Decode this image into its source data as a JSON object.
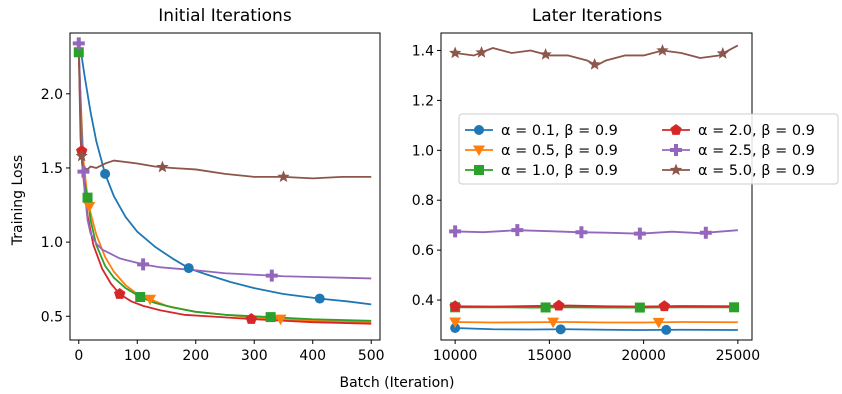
{
  "figure": {
    "xlabel": "Batch (Iteration)",
    "ylabel": "Training Loss"
  },
  "chart_data": [
    {
      "type": "line",
      "title": "Initial Iterations",
      "xlim": [
        -15,
        515
      ],
      "ylim": [
        0.34,
        2.41
      ],
      "xticks": [
        0,
        100,
        200,
        300,
        400,
        500
      ],
      "yticks": [
        0.5,
        1.0,
        1.5,
        2.0
      ],
      "xtick_labels": [
        "0",
        "100",
        "200",
        "300",
        "400",
        "500"
      ],
      "ytick_labels": [
        "0.5",
        "1.0",
        "1.5",
        "2.0"
      ],
      "series": [
        {
          "name": "α = 0.1, β = 0.9",
          "color": "#1f77b4",
          "marker": "circle",
          "x": [
            0,
            5,
            10,
            20,
            30,
            45,
            60,
            80,
            100,
            130,
            160,
            190,
            220,
            260,
            300,
            350,
            410,
            460,
            500
          ],
          "y": [
            2.3,
            2.25,
            2.12,
            1.88,
            1.68,
            1.46,
            1.31,
            1.17,
            1.07,
            0.97,
            0.89,
            0.82,
            0.78,
            0.73,
            0.69,
            0.65,
            0.62,
            0.6,
            0.58
          ],
          "markers_x": [
            45,
            188,
            412
          ]
        },
        {
          "name": "α = 0.5, β = 0.9",
          "color": "#ff7f0e",
          "marker": "triangle-down",
          "x": [
            0,
            4,
            8,
            15,
            20,
            30,
            45,
            60,
            80,
            100,
            125,
            150,
            200,
            250,
            300,
            350,
            400,
            450,
            500
          ],
          "y": [
            2.28,
            1.9,
            1.55,
            1.3,
            1.2,
            1.05,
            0.9,
            0.8,
            0.71,
            0.65,
            0.61,
            0.57,
            0.53,
            0.51,
            0.49,
            0.48,
            0.47,
            0.465,
            0.46
          ],
          "markers_x": [
            18,
            122,
            345
          ]
        },
        {
          "name": "α = 1.0, β = 0.9",
          "color": "#2ca02c",
          "marker": "square",
          "x": [
            0,
            4,
            8,
            15,
            20,
            30,
            45,
            60,
            80,
            105,
            130,
            160,
            200,
            250,
            300,
            350,
            400,
            450,
            500
          ],
          "y": [
            2.28,
            1.85,
            1.45,
            1.3,
            1.15,
            0.98,
            0.84,
            0.76,
            0.69,
            0.63,
            0.59,
            0.56,
            0.53,
            0.51,
            0.5,
            0.49,
            0.48,
            0.475,
            0.47
          ],
          "markers_x": [
            0,
            15,
            105,
            328
          ]
        },
        {
          "name": "α = 2.0, β = 0.9",
          "color": "#d62728",
          "marker": "pentagon",
          "x": [
            0,
            3,
            6,
            10,
            15,
            25,
            40,
            55,
            70,
            90,
            110,
            140,
            180,
            220,
            260,
            300,
            350,
            400,
            450,
            500
          ],
          "y": [
            2.3,
            1.8,
            1.52,
            1.35,
            1.18,
            0.98,
            0.82,
            0.72,
            0.65,
            0.6,
            0.57,
            0.54,
            0.51,
            0.5,
            0.49,
            0.48,
            0.47,
            0.46,
            0.455,
            0.45
          ],
          "markers_x": [
            5,
            70,
            295
          ]
        },
        {
          "name": "α = 2.5, β = 0.9",
          "color": "#9467bd",
          "marker": "plus",
          "x": [
            0,
            3,
            6,
            10,
            15,
            20,
            30,
            40,
            55,
            70,
            90,
            110,
            140,
            170,
            200,
            250,
            300,
            350,
            400,
            450,
            500
          ],
          "y": [
            2.34,
            1.95,
            1.6,
            1.35,
            1.15,
            1.06,
            0.99,
            0.95,
            0.92,
            0.89,
            0.87,
            0.85,
            0.83,
            0.82,
            0.81,
            0.79,
            0.78,
            0.77,
            0.765,
            0.76,
            0.755
          ],
          "markers_x": [
            0,
            8,
            110,
            330
          ]
        },
        {
          "name": "α = 5.0, β = 0.9",
          "color": "#8c564b",
          "marker": "star",
          "x": [
            0,
            3,
            6,
            10,
            15,
            20,
            30,
            45,
            60,
            80,
            100,
            130,
            160,
            200,
            250,
            300,
            350,
            400,
            450,
            500
          ],
          "y": [
            2.3,
            1.7,
            1.52,
            1.5,
            1.49,
            1.51,
            1.5,
            1.53,
            1.55,
            1.54,
            1.53,
            1.51,
            1.5,
            1.49,
            1.46,
            1.44,
            1.44,
            1.43,
            1.44,
            1.44
          ],
          "markers_x": [
            5,
            143,
            350
          ]
        }
      ]
    },
    {
      "type": "line",
      "title": "Later Iterations",
      "xlim": [
        9250,
        25750
      ],
      "ylim": [
        0.24,
        1.47
      ],
      "xticks": [
        10000,
        15000,
        20000,
        25000
      ],
      "yticks": [
        0.4,
        0.6,
        0.8,
        1.0,
        1.2,
        1.4
      ],
      "xtick_labels": [
        "10000",
        "15000",
        "20000",
        "25000"
      ],
      "ytick_labels": [
        "0.4",
        "0.6",
        "0.8",
        "1.0",
        "1.2",
        "1.4"
      ],
      "legend": {
        "location": "center-right",
        "columns": 2
      },
      "series": [
        {
          "name": "α = 0.1, β = 0.9",
          "color": "#1f77b4",
          "marker": "circle",
          "x": [
            10000,
            12000,
            14000,
            16000,
            18000,
            20000,
            22000,
            25000
          ],
          "y": [
            0.288,
            0.283,
            0.282,
            0.283,
            0.281,
            0.28,
            0.281,
            0.28
          ],
          "markers_x": [
            10000,
            15600,
            21200
          ]
        },
        {
          "name": "α = 0.5, β = 0.9",
          "color": "#ff7f0e",
          "marker": "triangle-down",
          "x": [
            10000,
            12000,
            14000,
            16000,
            18000,
            20000,
            22000,
            25000
          ],
          "y": [
            0.312,
            0.31,
            0.311,
            0.312,
            0.31,
            0.31,
            0.312,
            0.311
          ],
          "markers_x": [
            10000,
            15200,
            20800
          ]
        },
        {
          "name": "α = 1.0, β = 0.9",
          "color": "#2ca02c",
          "marker": "square",
          "x": [
            10000,
            12000,
            14000,
            16000,
            18000,
            20000,
            22000,
            25000
          ],
          "y": [
            0.371,
            0.371,
            0.37,
            0.371,
            0.37,
            0.37,
            0.371,
            0.371
          ],
          "markers_x": [
            10000,
            14800,
            19800,
            24800
          ]
        },
        {
          "name": "α = 2.0, β = 0.9",
          "color": "#d62728",
          "marker": "pentagon",
          "x": [
            10000,
            12000,
            14000,
            16000,
            18000,
            20000,
            22000,
            25000
          ],
          "y": [
            0.375,
            0.374,
            0.376,
            0.378,
            0.375,
            0.374,
            0.376,
            0.375
          ],
          "markers_x": [
            10000,
            15500,
            21100
          ]
        },
        {
          "name": "α = 2.5, β = 0.9",
          "color": "#9467bd",
          "marker": "plus",
          "x": [
            10000,
            11500,
            13300,
            15000,
            16500,
            18000,
            19800,
            21500,
            23000,
            25000
          ],
          "y": [
            0.675,
            0.672,
            0.68,
            0.676,
            0.672,
            0.67,
            0.666,
            0.674,
            0.668,
            0.68
          ],
          "markers_x": [
            10000,
            13300,
            16700,
            19800,
            23300
          ]
        },
        {
          "name": "α = 5.0, β = 0.9",
          "color": "#8c564b",
          "marker": "star",
          "x": [
            10000,
            11000,
            12000,
            13000,
            14000,
            15000,
            16000,
            17000,
            17500,
            18000,
            19000,
            20000,
            21000,
            22000,
            23000,
            24000,
            25000
          ],
          "y": [
            1.39,
            1.38,
            1.41,
            1.39,
            1.4,
            1.38,
            1.38,
            1.36,
            1.34,
            1.36,
            1.38,
            1.38,
            1.4,
            1.39,
            1.37,
            1.38,
            1.42
          ],
          "markers_x": [
            10000,
            11400,
            14800,
            17400,
            21000,
            24200
          ]
        }
      ]
    }
  ]
}
